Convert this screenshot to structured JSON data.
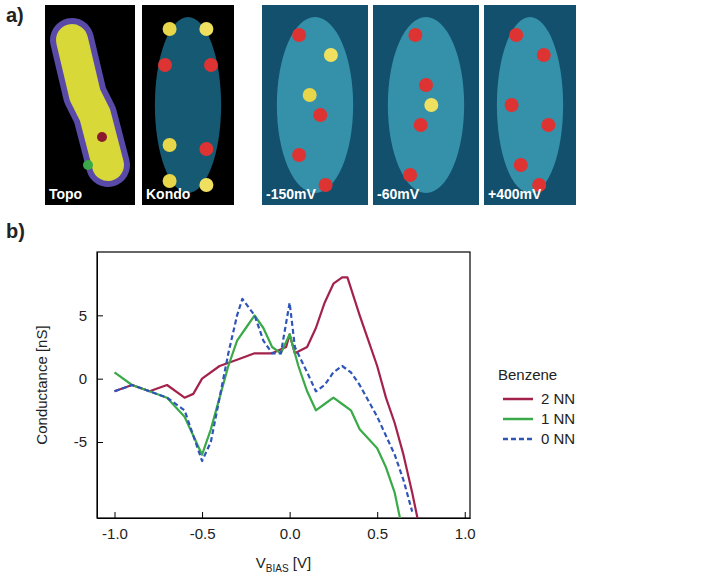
{
  "figure": {
    "panel_a_label": "a)",
    "panel_b_label": "b)",
    "images": [
      "Topo",
      "Kondo",
      "-150mV",
      "-60mV",
      "+400mV"
    ]
  },
  "chart_data": {
    "type": "line",
    "xlabel": [
      "V",
      "BIAS",
      " [V]"
    ],
    "ylabel": "Conductance [nS]",
    "xlim": [
      -1.1,
      1.03
    ],
    "ylim": [
      -11,
      10
    ],
    "xticks": [
      {
        "value": -1,
        "label": "-1.0"
      },
      -0.5,
      {
        "value": 0,
        "label": "0.0"
      },
      0.5,
      {
        "value": 1,
        "label": "1.0"
      }
    ],
    "yticks": [
      -5,
      0,
      5
    ],
    "legend": "right",
    "legend_title": "Benzene",
    "series": [
      {
        "name": "2 NN",
        "color": "#a3224b",
        "line_style": "solid",
        "x": [
          -1.0,
          -0.9,
          -0.8,
          -0.7,
          -0.6,
          -0.55,
          -0.5,
          -0.4,
          -0.3,
          -0.2,
          -0.1,
          -0.02,
          0.0,
          0.03,
          0.1,
          0.15,
          0.2,
          0.25,
          0.3,
          0.33,
          0.4,
          0.45,
          0.5,
          0.55,
          0.6,
          0.65,
          0.7,
          0.73
        ],
        "values": [
          -1,
          -0.5,
          -1,
          -0.5,
          -1.5,
          -1.2,
          0,
          1,
          1.5,
          2,
          2,
          2.5,
          3.5,
          2,
          2.5,
          4,
          6,
          7.5,
          8,
          8,
          5,
          3,
          1,
          -1.5,
          -3.5,
          -6,
          -9,
          -11
        ]
      },
      {
        "name": "1 NN",
        "color": "#3aaa48",
        "line_style": "solid",
        "x": [
          -1.0,
          -0.9,
          -0.8,
          -0.7,
          -0.6,
          -0.55,
          -0.5,
          -0.45,
          -0.4,
          -0.35,
          -0.3,
          -0.25,
          -0.2,
          -0.15,
          -0.1,
          -0.05,
          0.0,
          0.05,
          0.1,
          0.15,
          0.2,
          0.25,
          0.3,
          0.35,
          0.4,
          0.5,
          0.55,
          0.6,
          0.63
        ],
        "values": [
          0.5,
          -0.5,
          -1,
          -1.5,
          -3,
          -4.5,
          -6,
          -4,
          -1.5,
          1,
          3,
          4,
          5,
          4,
          2.5,
          2,
          3.5,
          1,
          -1,
          -2.5,
          -2,
          -1.5,
          -2,
          -2.5,
          -4,
          -5.5,
          -7,
          -9,
          -11
        ]
      },
      {
        "name": "0 NN",
        "color": "#2f55b8",
        "line_style": "dashed",
        "x": [
          -1.0,
          -0.9,
          -0.8,
          -0.7,
          -0.6,
          -0.55,
          -0.5,
          -0.45,
          -0.4,
          -0.35,
          -0.3,
          -0.27,
          -0.2,
          -0.15,
          -0.1,
          -0.05,
          0.0,
          0.03,
          0.1,
          0.15,
          0.2,
          0.25,
          0.3,
          0.35,
          0.4,
          0.5,
          0.6,
          0.65,
          0.7
        ],
        "values": [
          -1,
          -0.5,
          -1,
          -1.5,
          -2.5,
          -4.5,
          -6.5,
          -5,
          -1.5,
          2,
          5,
          6.3,
          5,
          3,
          2,
          2,
          6,
          2.5,
          0.5,
          -1,
          -0.5,
          0.5,
          1,
          0.5,
          -0.5,
          -3,
          -6,
          -8,
          -10.5
        ]
      }
    ]
  }
}
